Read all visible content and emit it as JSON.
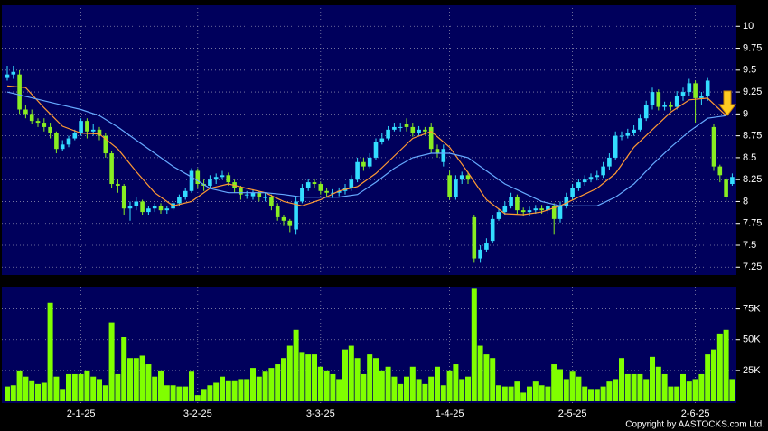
{
  "chart_data": {
    "type": "candlestick",
    "up_color": "#33ddff",
    "down_color": "#88ee22",
    "volume_color": "#80ff00",
    "panel_color": "#00005c",
    "grid": true,
    "categories": [
      null,
      null,
      null,
      null,
      null,
      null,
      null,
      null,
      null,
      null,
      null,
      null,
      "2-1-25",
      null,
      null,
      null,
      null,
      null,
      null,
      null,
      null,
      null,
      null,
      null,
      null,
      null,
      null,
      null,
      null,
      null,
      null,
      "3-2-25",
      null,
      null,
      null,
      null,
      null,
      null,
      null,
      null,
      null,
      null,
      null,
      null,
      null,
      null,
      null,
      null,
      null,
      null,
      null,
      "3-3-25",
      null,
      null,
      null,
      null,
      null,
      null,
      null,
      null,
      null,
      null,
      null,
      null,
      null,
      null,
      null,
      null,
      null,
      null,
      null,
      null,
      "1-4-25",
      null,
      null,
      null,
      null,
      null,
      null,
      null,
      null,
      null,
      null,
      null,
      null,
      null,
      null,
      null,
      null,
      null,
      null,
      null,
      "2-5-25",
      null,
      null,
      null,
      null,
      null,
      null,
      null,
      null,
      null,
      null,
      null,
      null,
      null,
      null,
      null,
      null,
      null,
      null,
      null,
      "2-6-25",
      null,
      null,
      null,
      null,
      null,
      null
    ],
    "open": [
      9.42,
      9.45,
      9.45,
      9.05,
      9.0,
      8.92,
      8.9,
      8.85,
      8.78,
      8.6,
      8.65,
      8.72,
      8.78,
      8.92,
      8.8,
      8.82,
      8.75,
      8.55,
      8.2,
      8.18,
      7.92,
      7.95,
      8.0,
      7.88,
      7.92,
      7.95,
      7.9,
      7.92,
      7.98,
      8.05,
      8.12,
      8.35,
      8.2,
      8.18,
      8.25,
      8.28,
      8.3,
      8.22,
      8.15,
      8.08,
      8.06,
      8.1,
      8.05,
      8.05,
      7.95,
      7.82,
      7.78,
      7.68,
      8.0,
      8.15,
      8.22,
      8.2,
      8.12,
      8.1,
      8.1,
      8.12,
      8.15,
      8.25,
      8.45,
      8.4,
      8.5,
      8.68,
      8.72,
      8.82,
      8.85,
      8.88,
      8.85,
      8.78,
      8.82,
      8.85,
      8.6,
      8.45,
      8.3,
      8.05,
      8.25,
      8.3,
      7.82,
      7.35,
      7.45,
      7.55,
      7.8,
      7.88,
      7.95,
      8.05,
      7.9,
      7.88,
      7.9,
      7.92,
      7.9,
      7.95,
      7.8,
      7.95,
      8.05,
      8.15,
      8.22,
      8.25,
      8.28,
      8.3,
      8.4,
      8.5,
      8.75,
      8.75,
      8.78,
      8.82,
      8.95,
      9.1,
      9.25,
      9.08,
      9.1,
      9.08,
      9.2,
      9.25,
      9.35,
      9.18,
      9.2,
      8.85,
      8.4,
      8.25,
      8.2
    ],
    "high": [
      9.55,
      9.55,
      9.5,
      9.1,
      9.05,
      8.95,
      8.95,
      8.9,
      8.8,
      8.7,
      8.75,
      8.82,
      8.95,
      8.95,
      8.88,
      8.85,
      8.78,
      8.58,
      8.25,
      8.2,
      8.0,
      8.05,
      8.02,
      7.95,
      7.98,
      7.98,
      7.95,
      8.0,
      8.08,
      8.15,
      8.38,
      8.38,
      8.25,
      8.3,
      8.32,
      8.35,
      8.33,
      8.25,
      8.18,
      8.12,
      8.14,
      8.12,
      8.1,
      8.08,
      7.98,
      7.85,
      7.8,
      8.05,
      8.2,
      8.26,
      8.26,
      8.22,
      8.15,
      8.14,
      8.16,
      8.2,
      8.3,
      8.5,
      8.5,
      8.55,
      8.72,
      8.78,
      8.86,
      8.9,
      8.9,
      8.95,
      8.9,
      8.86,
      8.85,
      8.9,
      8.65,
      8.65,
      8.35,
      8.3,
      8.34,
      8.34,
      7.85,
      7.5,
      7.58,
      7.85,
      7.92,
      8.0,
      8.1,
      8.08,
      7.93,
      7.94,
      7.96,
      7.96,
      8.0,
      7.98,
      8.0,
      8.1,
      8.2,
      8.26,
      8.3,
      8.32,
      8.35,
      8.45,
      8.55,
      8.8,
      8.8,
      8.83,
      8.87,
      9.0,
      9.15,
      9.3,
      9.28,
      9.14,
      9.14,
      9.26,
      9.3,
      9.4,
      9.38,
      9.25,
      9.42,
      8.88,
      8.42,
      8.28,
      8.32
    ],
    "low": [
      9.38,
      9.4,
      9.0,
      8.95,
      8.88,
      8.85,
      8.8,
      8.72,
      8.55,
      8.58,
      8.62,
      8.7,
      8.75,
      8.72,
      8.75,
      8.7,
      8.5,
      8.15,
      8.1,
      7.85,
      7.78,
      7.9,
      7.85,
      7.85,
      7.88,
      7.86,
      7.86,
      7.9,
      7.95,
      8.02,
      8.1,
      8.15,
      8.12,
      8.15,
      8.2,
      8.25,
      8.18,
      8.1,
      8.02,
      8.03,
      8.02,
      8.0,
      8.0,
      7.9,
      7.78,
      7.72,
      7.65,
      7.62,
      7.98,
      8.12,
      8.15,
      8.08,
      8.05,
      8.04,
      8.06,
      8.08,
      8.12,
      8.22,
      8.35,
      8.38,
      8.48,
      8.65,
      8.7,
      8.8,
      8.8,
      8.8,
      8.74,
      8.75,
      8.76,
      8.55,
      8.5,
      8.4,
      8.02,
      8.02,
      8.2,
      8.2,
      7.3,
      7.3,
      7.42,
      7.52,
      7.78,
      7.85,
      7.92,
      7.86,
      7.84,
      7.84,
      7.86,
      7.86,
      7.86,
      7.62,
      7.76,
      7.92,
      8.02,
      8.12,
      8.18,
      8.22,
      8.24,
      8.27,
      8.36,
      8.48,
      8.7,
      8.72,
      8.75,
      8.8,
      8.92,
      9.05,
      9.04,
      9.04,
      9.04,
      9.05,
      9.15,
      9.2,
      8.9,
      9.1,
      9.15,
      8.35,
      8.22,
      8.0,
      8.18
    ],
    "close": [
      9.45,
      9.48,
      9.05,
      9.0,
      8.92,
      8.9,
      8.85,
      8.78,
      8.6,
      8.65,
      8.72,
      8.78,
      8.92,
      8.8,
      8.82,
      8.75,
      8.55,
      8.2,
      8.18,
      7.92,
      7.95,
      8.0,
      7.88,
      7.92,
      7.95,
      7.9,
      7.92,
      7.98,
      8.05,
      8.12,
      8.35,
      8.2,
      8.18,
      8.25,
      8.28,
      8.3,
      8.22,
      8.15,
      8.08,
      8.08,
      8.1,
      8.05,
      8.05,
      7.95,
      7.82,
      7.78,
      7.72,
      8.0,
      8.15,
      8.22,
      8.2,
      8.12,
      8.1,
      8.1,
      8.12,
      8.15,
      8.25,
      8.45,
      8.4,
      8.5,
      8.68,
      8.72,
      8.82,
      8.85,
      8.85,
      8.85,
      8.78,
      8.82,
      8.8,
      8.6,
      8.55,
      8.6,
      8.05,
      8.25,
      8.3,
      8.25,
      7.35,
      7.45,
      7.52,
      7.8,
      7.88,
      7.95,
      8.05,
      7.9,
      7.88,
      7.9,
      7.92,
      7.9,
      7.95,
      7.8,
      7.95,
      8.05,
      8.15,
      8.22,
      8.25,
      8.28,
      8.3,
      8.4,
      8.5,
      8.75,
      8.75,
      8.78,
      8.82,
      8.95,
      9.1,
      9.25,
      9.08,
      9.1,
      9.08,
      9.2,
      9.25,
      9.35,
      9.18,
      9.2,
      9.38,
      8.4,
      8.3,
      8.05,
      8.28
    ],
    "volume": [
      12000,
      13000,
      25000,
      20000,
      17000,
      14000,
      15000,
      80000,
      20000,
      10000,
      22000,
      22000,
      22000,
      25000,
      20000,
      18000,
      13000,
      64000,
      22000,
      52000,
      35000,
      35000,
      37000,
      30000,
      20000,
      25000,
      13000,
      13000,
      12000,
      12000,
      24000,
      5000,
      10000,
      13000,
      15000,
      20000,
      17000,
      17000,
      18000,
      18000,
      27000,
      20000,
      24000,
      27000,
      30000,
      35000,
      45000,
      58000,
      40000,
      38000,
      38000,
      28000,
      25000,
      22000,
      18000,
      42000,
      45000,
      35000,
      22000,
      38000,
      35000,
      25000,
      28000,
      20000,
      14000,
      20000,
      28000,
      18000,
      14000,
      20000,
      28000,
      13000,
      25000,
      30000,
      18000,
      20000,
      92000,
      45000,
      38000,
      35000,
      13000,
      12000,
      12000,
      16000,
      7000,
      12000,
      16000,
      13000,
      12000,
      30000,
      26000,
      18000,
      24000,
      20000,
      12000,
      10000,
      10000,
      12000,
      16000,
      18000,
      35000,
      22000,
      22000,
      22000,
      18000,
      36000,
      28000,
      22000,
      12000,
      12000,
      22000,
      16000,
      18000,
      22000,
      38000,
      42000,
      55000,
      58000,
      18000
    ],
    "ma_lines": [
      {
        "color": "#ff9933",
        "x": [
          0,
          3,
          6,
          9,
          12,
          15,
          18,
          21,
          24,
          27,
          30,
          33,
          36,
          39,
          42,
          45,
          48,
          51,
          54,
          57,
          60,
          63,
          66,
          69,
          72,
          75,
          78,
          81,
          84,
          87,
          90,
          93,
          96,
          99,
          102,
          105,
          108,
          111,
          114,
          117
        ],
        "values": [
          9.32,
          9.3,
          9.07,
          8.86,
          8.78,
          8.77,
          8.6,
          8.34,
          8.1,
          7.95,
          8.0,
          8.15,
          8.2,
          8.15,
          8.1,
          8.0,
          7.95,
          8.02,
          8.12,
          8.17,
          8.32,
          8.52,
          8.72,
          8.8,
          8.62,
          8.33,
          8.02,
          7.86,
          7.85,
          7.88,
          7.95,
          8.05,
          8.15,
          8.32,
          8.62,
          8.82,
          9.02,
          9.16,
          9.18,
          8.98
        ]
      },
      {
        "color": "#66aaff",
        "x": [
          0,
          3,
          6,
          9,
          12,
          15,
          18,
          21,
          24,
          27,
          30,
          33,
          36,
          39,
          42,
          45,
          48,
          51,
          54,
          57,
          60,
          63,
          66,
          69,
          72,
          75,
          78,
          81,
          84,
          87,
          90,
          93,
          96,
          99,
          102,
          105,
          108,
          111,
          114,
          117
        ],
        "values": [
          9.25,
          9.2,
          9.15,
          9.1,
          9.05,
          8.98,
          8.85,
          8.7,
          8.55,
          8.4,
          8.28,
          8.15,
          8.1,
          8.1,
          8.1,
          8.08,
          8.05,
          8.05,
          8.05,
          8.08,
          8.22,
          8.38,
          8.5,
          8.55,
          8.55,
          8.5,
          8.35,
          8.2,
          8.1,
          8.0,
          7.95,
          7.95,
          7.95,
          8.05,
          8.2,
          8.42,
          8.62,
          8.8,
          8.95,
          8.98
        ]
      }
    ],
    "ylim": [
      7.16,
      10.25
    ],
    "yticks": [
      7.25,
      7.5,
      7.75,
      8,
      8.25,
      8.5,
      8.75,
      9,
      9.25,
      9.5,
      9.75,
      10
    ],
    "volume_ylim": [
      0,
      93000
    ],
    "volume_yticks": [
      {
        "value": 25000,
        "label": "25K"
      },
      {
        "value": 50000,
        "label": "50K"
      },
      {
        "value": 75000,
        "label": "75K"
      }
    ],
    "copyright": "Copyright by AASTOCKS.com Ltd."
  }
}
